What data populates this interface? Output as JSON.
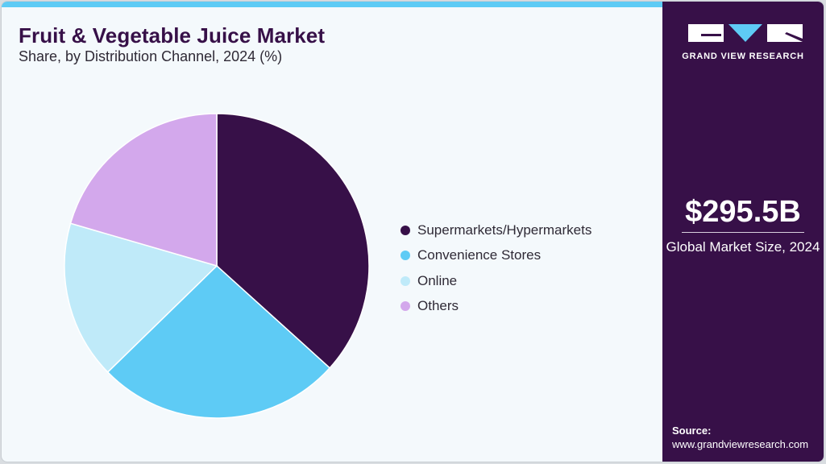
{
  "header": {
    "title": "Fruit & Vegetable Juice Market",
    "subtitle": "Share, by Distribution Channel, 2024 (%)"
  },
  "colors": {
    "accent_bar": "#5ecbf5",
    "sidebar_bg": "#371048",
    "card_bg": "#f4f9fc"
  },
  "legend": {
    "items": [
      {
        "label": "Supermarkets/Hypermarkets",
        "color": "#371048"
      },
      {
        "label": "Convenience Stores",
        "color": "#5ecbf5"
      },
      {
        "label": "Online",
        "color": "#bfeaf9"
      },
      {
        "label": "Others",
        "color": "#d3a8ec"
      }
    ]
  },
  "sidebar": {
    "logo_text": "GRAND VIEW RESEARCH",
    "market_value": "$295.5B",
    "market_label": "Global Market Size, 2024",
    "source_label": "Source:",
    "source_url": "www.grandviewresearch.com"
  },
  "chart_data": {
    "type": "pie",
    "title": "Fruit & Vegetable Juice Market",
    "subtitle": "Share, by Distribution Channel, 2024 (%)",
    "categories": [
      "Supermarkets/Hypermarkets",
      "Convenience Stores",
      "Online",
      "Others"
    ],
    "values": [
      36.7,
      26.0,
      16.8,
      20.5
    ],
    "colors": [
      "#371048",
      "#5ecbf5",
      "#bfeaf9",
      "#d3a8ec"
    ],
    "start_angle": "12 o'clock, clockwise",
    "legend_position": "right",
    "data_labels": false
  }
}
